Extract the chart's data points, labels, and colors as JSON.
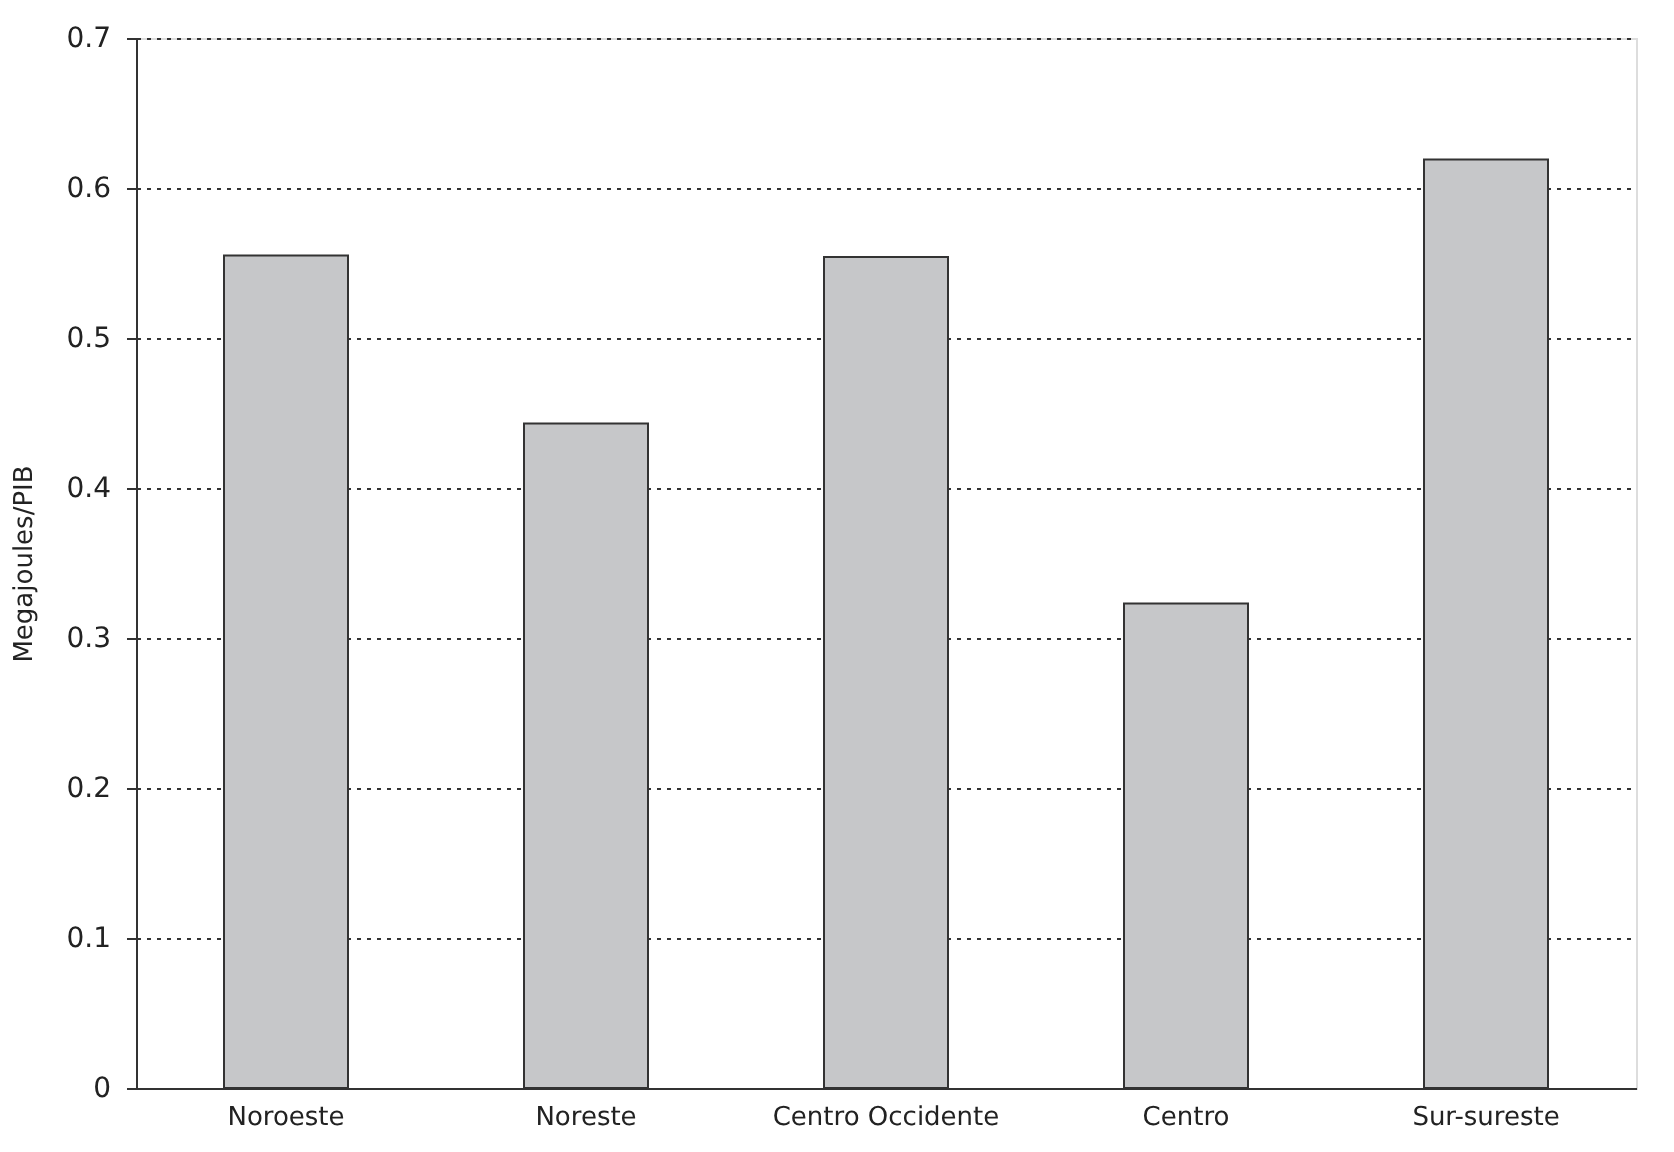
{
  "chart_data": {
    "type": "bar",
    "ylabel": "Megajoules/PIB",
    "categories": [
      "Noroeste",
      "Noreste",
      "Centro Occidente",
      "Centro",
      "Sur-sureste"
    ],
    "values": [
      0.555,
      0.443,
      0.554,
      0.323,
      0.619
    ],
    "color": "#c6c7c9",
    "ylim": [
      0,
      0.7
    ],
    "yticks": [
      0,
      0.1,
      0.2,
      0.3,
      0.4,
      0.5,
      0.6,
      0.7
    ],
    "grid": "y"
  }
}
